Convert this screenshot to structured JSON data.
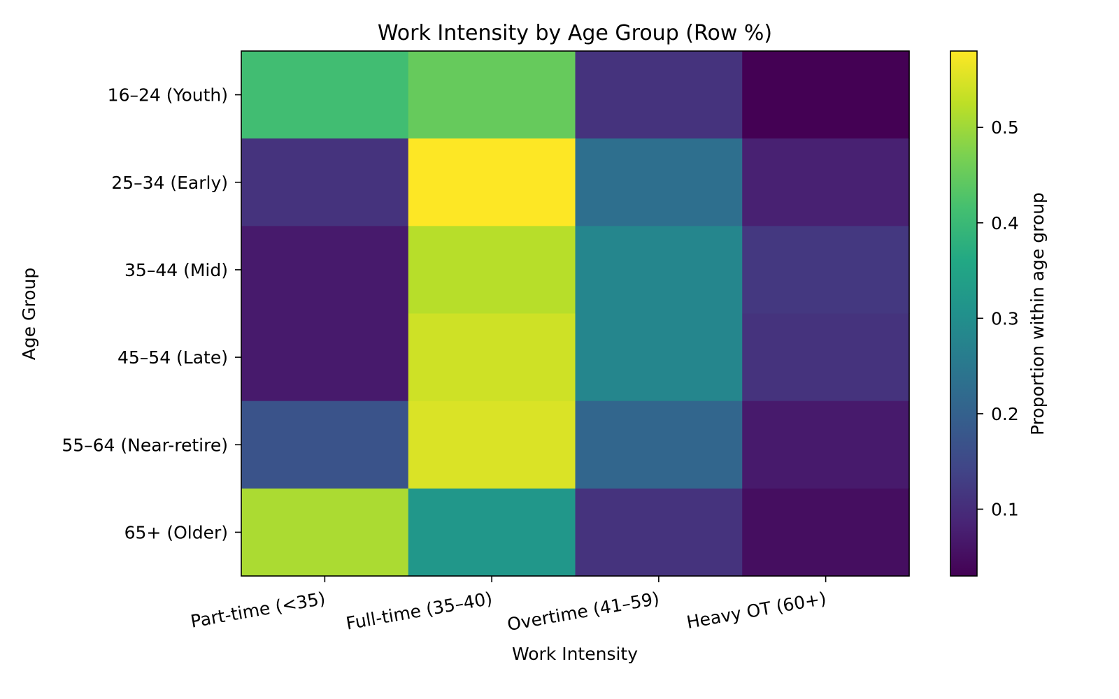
{
  "chart_data": {
    "type": "heatmap",
    "title": "Work Intensity by Age Group (Row %)",
    "xlabel": "Work Intensity",
    "ylabel": "Age Group",
    "x_categories": [
      "Part-time (<35)",
      "Full-time (35–40)",
      "Overtime (41–59)",
      "Heavy OT (60+)"
    ],
    "y_categories": [
      "16–24 (Youth)",
      "25–34 (Early)",
      "35–44 (Mid)",
      "45–54 (Late)",
      "55–64 (Near-retire)",
      "65+ (Older)"
    ],
    "values": [
      [
        0.41,
        0.45,
        0.11,
        0.03
      ],
      [
        0.11,
        0.58,
        0.23,
        0.08
      ],
      [
        0.07,
        0.52,
        0.28,
        0.12
      ],
      [
        0.07,
        0.54,
        0.28,
        0.11
      ],
      [
        0.17,
        0.55,
        0.21,
        0.07
      ],
      [
        0.51,
        0.32,
        0.11,
        0.05
      ]
    ],
    "colormap": "viridis",
    "vmin": 0.03,
    "vmax": 0.58,
    "colorbar": {
      "label": "Proportion within age group",
      "ticks": [
        0.1,
        0.2,
        0.3,
        0.4,
        0.5
      ],
      "tick_labels": [
        "0.1",
        "0.2",
        "0.3",
        "0.4",
        "0.5"
      ]
    },
    "grid": false
  }
}
